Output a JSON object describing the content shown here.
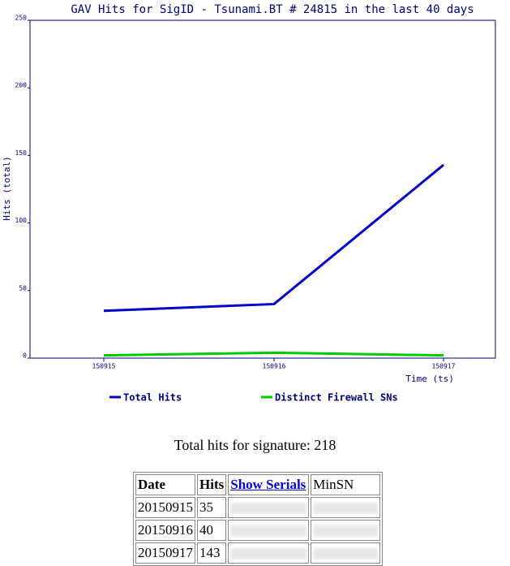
{
  "chart_data": {
    "type": "line",
    "title": "GAV Hits for SigID - Tsunami.BT # 24815 in the last 40 days",
    "y_label": "Hits (total)",
    "x_label": "Time (ts)",
    "categories": [
      "150915",
      "150916",
      "150917"
    ],
    "series": [
      {
        "name": "Total Hits",
        "color": "#0000cc",
        "values": [
          35,
          40,
          143
        ]
      },
      {
        "name": "Distinct Firewall SNs",
        "color": "#00cc00",
        "values": [
          2,
          4,
          2
        ]
      }
    ],
    "ylim": [
      0,
      250
    ],
    "yticks": [
      0,
      50,
      100,
      150,
      200,
      250
    ]
  },
  "summary": "Total hits for signature: 218",
  "table": {
    "header": [
      "Date",
      "Hits",
      "Show Serials",
      "MinSN"
    ],
    "rows": [
      [
        "20150915",
        "35"
      ],
      [
        "20150916",
        "40"
      ],
      [
        "20150917",
        "143"
      ]
    ]
  }
}
